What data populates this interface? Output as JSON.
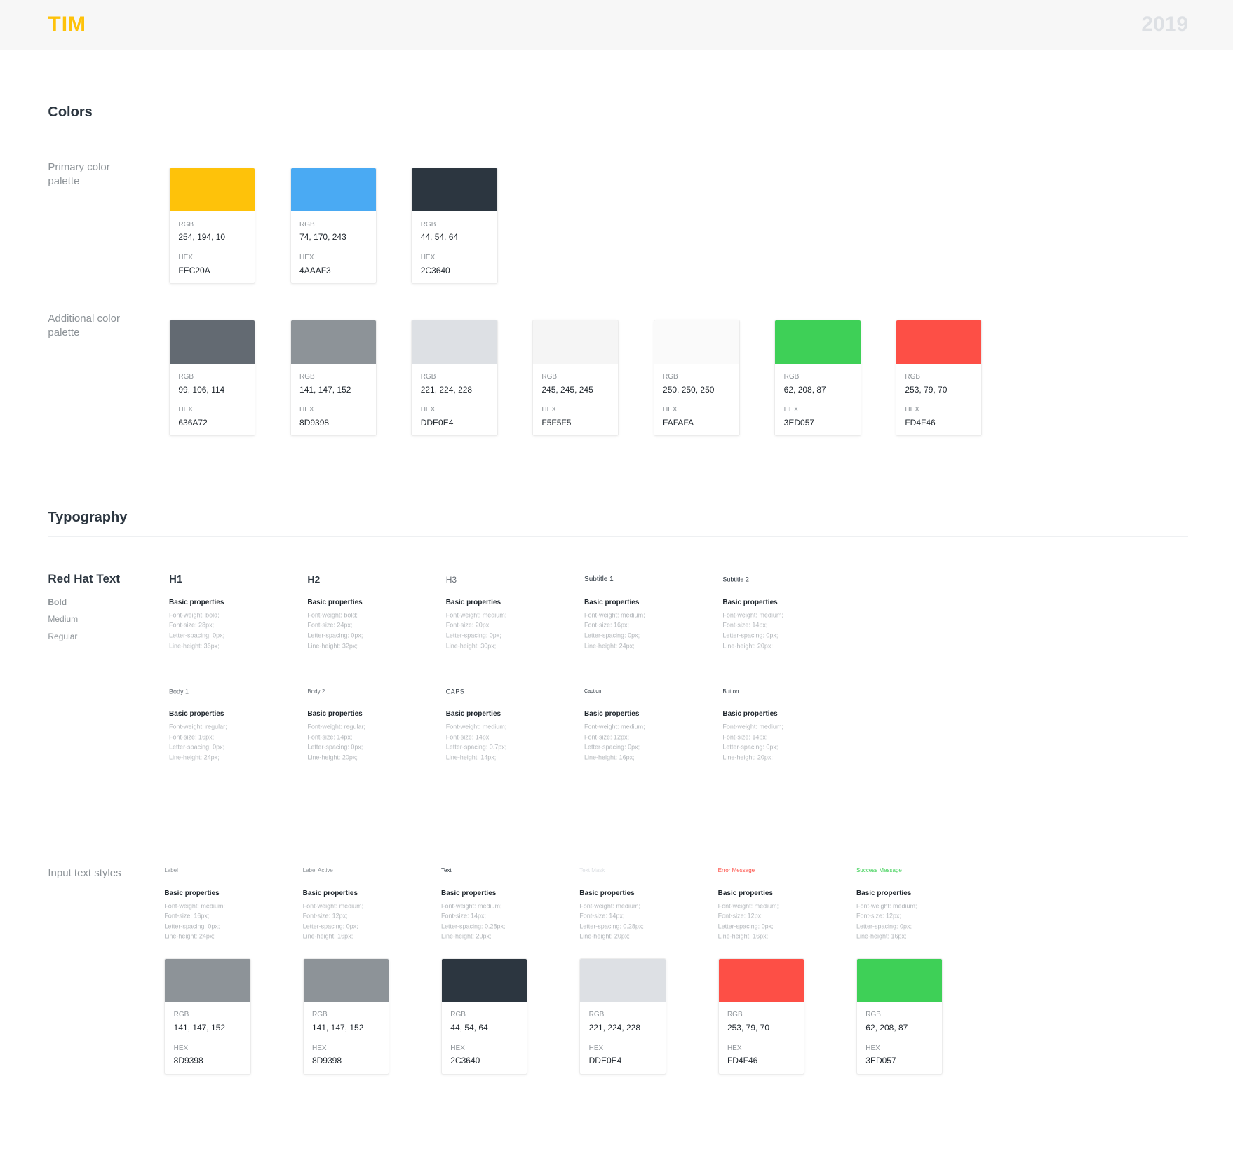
{
  "header": {
    "logo": "TIM",
    "year": "2019"
  },
  "colors": {
    "title": "Colors",
    "primary": {
      "label": "Primary color palette",
      "swatches": [
        {
          "color": "#FEC20A",
          "rgb_label": "RGB",
          "rgb": "254, 194, 10",
          "hex_label": "HEX",
          "hex": "FEC20A"
        },
        {
          "color": "#4AAAF3",
          "rgb_label": "RGB",
          "rgb": "74, 170, 243",
          "hex_label": "HEX",
          "hex": "4AAAF3"
        },
        {
          "color": "#2C3640",
          "rgb_label": "RGB",
          "rgb": "44, 54, 64",
          "hex_label": "HEX",
          "hex": "2C3640"
        }
      ]
    },
    "additional": {
      "label": "Additional color palette",
      "swatches": [
        {
          "color": "#636A72",
          "rgb_label": "RGB",
          "rgb": "99, 106, 114",
          "hex_label": "HEX",
          "hex": "636A72"
        },
        {
          "color": "#8D9398",
          "rgb_label": "RGB",
          "rgb": "141, 147, 152",
          "hex_label": "HEX",
          "hex": "8D9398"
        },
        {
          "color": "#DDE0E4",
          "rgb_label": "RGB",
          "rgb": "221, 224, 228",
          "hex_label": "HEX",
          "hex": "DDE0E4"
        },
        {
          "color": "#F5F5F5",
          "rgb_label": "RGB",
          "rgb": "245, 245, 245",
          "hex_label": "HEX",
          "hex": "F5F5F5"
        },
        {
          "color": "#FAFAFA",
          "rgb_label": "RGB",
          "rgb": "250, 250, 250",
          "hex_label": "HEX",
          "hex": "FAFAFA"
        },
        {
          "color": "#3ED057",
          "rgb_label": "RGB",
          "rgb": "62, 208, 87",
          "hex_label": "HEX",
          "hex": "3ED057"
        },
        {
          "color": "#FD4F46",
          "rgb_label": "RGB",
          "rgb": "253, 79, 70",
          "hex_label": "HEX",
          "hex": "FD4F46"
        }
      ]
    }
  },
  "typography": {
    "title": "Typography",
    "font": {
      "name": "Red Hat Text",
      "weights": [
        "Bold",
        "Medium",
        "Regular"
      ]
    },
    "styles": [
      {
        "name": "H1",
        "heading": "Basic properties",
        "props": [
          "Font-weight: bold;",
          "Font-size: 28px;",
          "Letter-spacing: 0px;",
          "Line-height: 36px;"
        ]
      },
      {
        "name": "H2",
        "heading": "Basic properties",
        "props": [
          "Font-weight: bold;",
          "Font-size: 24px;",
          "Letter-spacing: 0px;",
          "Line-height: 32px;"
        ]
      },
      {
        "name": "H3",
        "heading": "Basic properties",
        "props": [
          "Font-weight: medium;",
          "Font-size: 20px;",
          "Letter-spacing: 0px;",
          "Line-height: 30px;"
        ]
      },
      {
        "name": "Subtitle 1",
        "heading": "Basic properties",
        "props": [
          "Font-weight: medium;",
          "Font-size: 16px;",
          "Letter-spacing: 0px;",
          "Line-height: 24px;"
        ]
      },
      {
        "name": "Subtitle 2",
        "heading": "Basic properties",
        "props": [
          "Font-weight: medium;",
          "Font-size: 14px;",
          "Letter-spacing: 0px;",
          "Line-height: 20px;"
        ]
      },
      {
        "name": "Body 1",
        "heading": "Basic properties",
        "props": [
          "Font-weight: regular;",
          "Font-size: 16px;",
          "Letter-spacing: 0px;",
          "Line-height: 24px;"
        ]
      },
      {
        "name": "Body 2",
        "heading": "Basic properties",
        "props": [
          "Font-weight: regular;",
          "Font-size: 14px;",
          "Letter-spacing: 0px;",
          "Line-height: 20px;"
        ]
      },
      {
        "name": "CAPS",
        "heading": "Basic properties",
        "props": [
          "Font-weight: medium;",
          "Font-size: 14px;",
          "Letter-spacing: 0.7px;",
          "Line-height: 14px;"
        ]
      },
      {
        "name": "Caption",
        "heading": "Basic properties",
        "props": [
          "Font-weight: medium;",
          "Font-size: 12px;",
          "Letter-spacing: 0px;",
          "Line-height: 16px;"
        ]
      },
      {
        "name": "Button",
        "heading": "Basic properties",
        "props": [
          "Font-weight: medium;",
          "Font-size: 14px;",
          "Letter-spacing: 0px;",
          "Line-height: 20px;"
        ]
      }
    ]
  },
  "inputs": {
    "label": "Input text styles",
    "styles": [
      {
        "name": "Label",
        "color": "#8D9398",
        "heading": "Basic properties",
        "props": [
          "Font-weight: medium;",
          "Font-size: 16px;",
          "Letter-spacing: 0px;",
          "Line-height: 24px;"
        ],
        "swatch": {
          "color": "#8D9398",
          "rgb_label": "RGB",
          "rgb": "141, 147, 152",
          "hex_label": "HEX",
          "hex": "8D9398"
        }
      },
      {
        "name": "Label Active",
        "color": "#8D9398",
        "heading": "Basic properties",
        "props": [
          "Font-weight: medium;",
          "Font-size: 12px;",
          "Letter-spacing: 0px;",
          "Line-height: 16px;"
        ],
        "swatch": {
          "color": "#8D9398",
          "rgb_label": "RGB",
          "rgb": "141, 147, 152",
          "hex_label": "HEX",
          "hex": "8D9398"
        }
      },
      {
        "name": "Text",
        "color": "#2C3640",
        "heading": "Basic properties",
        "props": [
          "Font-weight: medium;",
          "Font-size: 14px;",
          "Letter-spacing: 0.28px;",
          "Line-height: 20px;"
        ],
        "swatch": {
          "color": "#2C3640",
          "rgb_label": "RGB",
          "rgb": "44, 54, 64",
          "hex_label": "HEX",
          "hex": "2C3640"
        }
      },
      {
        "name": "Text Mask",
        "color": "#DDE0E4",
        "heading": "Basic properties",
        "props": [
          "Font-weight: medium;",
          "Font-size: 14px;",
          "Letter-spacing: 0.28px;",
          "Line-height: 20px;"
        ],
        "swatch": {
          "color": "#DDE0E4",
          "rgb_label": "RGB",
          "rgb": "221, 224, 228",
          "hex_label": "HEX",
          "hex": "DDE0E4"
        }
      },
      {
        "name": "Error Message",
        "color": "#FD4F46",
        "heading": "Basic properties",
        "props": [
          "Font-weight: medium;",
          "Font-size: 12px;",
          "Letter-spacing: 0px;",
          "Line-height: 16px;"
        ],
        "swatch": {
          "color": "#FD4F46",
          "rgb_label": "RGB",
          "rgb": "253, 79, 70",
          "hex_label": "HEX",
          "hex": "FD4F46"
        }
      },
      {
        "name": "Success Message",
        "color": "#3ED057",
        "heading": "Basic properties",
        "props": [
          "Font-weight: medium;",
          "Font-size: 12px;",
          "Letter-spacing: 0px;",
          "Line-height: 16px;"
        ],
        "swatch": {
          "color": "#3ED057",
          "rgb_label": "RGB",
          "rgb": "62, 208, 87",
          "hex_label": "HEX",
          "hex": "3ED057"
        }
      }
    ]
  }
}
